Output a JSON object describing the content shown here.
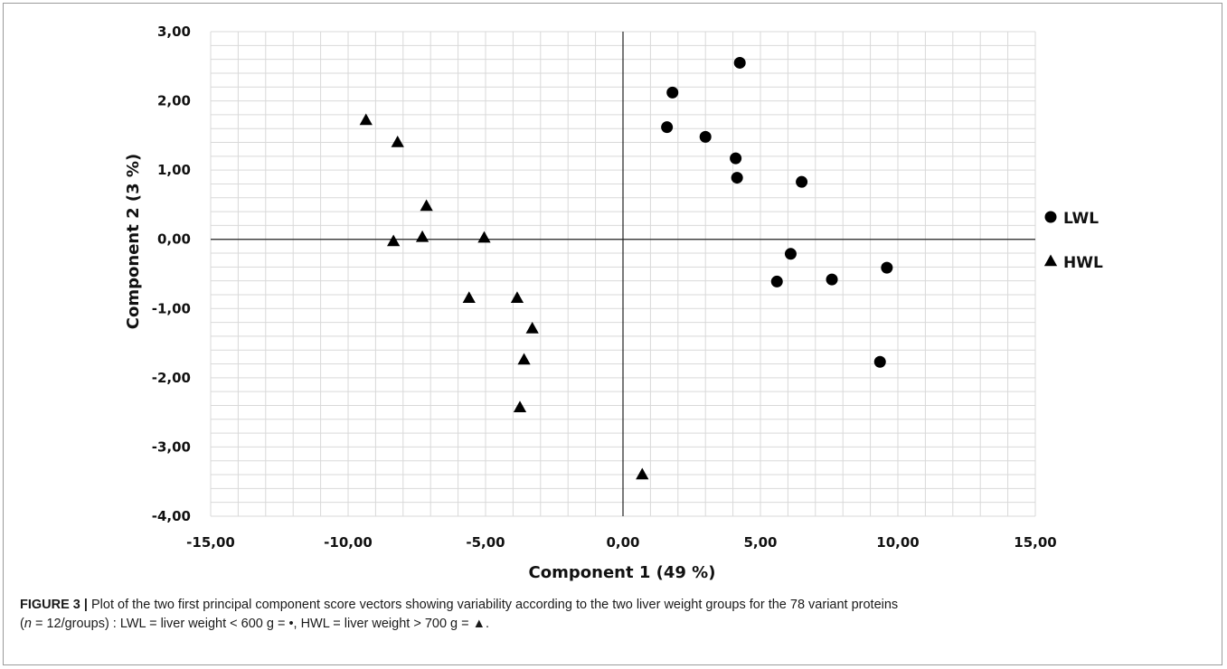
{
  "chart_data": {
    "type": "scatter",
    "xlabel": "Component 1 (49 %)",
    "ylabel": "Component 2 (3 %)",
    "xlim": [
      -15,
      15
    ],
    "ylim": [
      -4,
      3
    ],
    "x_ticks": [
      "-15,00",
      "-10,00",
      "-5,00",
      "0,00",
      "5,00",
      "10,00",
      "15,00"
    ],
    "y_ticks": [
      "3,00",
      "2,00",
      "1,00",
      "0,00",
      "-1,00",
      "-2,00",
      "-3,00",
      "-4,00"
    ],
    "grid": true,
    "legend_position": "right",
    "series": [
      {
        "name": "LWL",
        "marker": "circle",
        "color": "#000000",
        "points": [
          {
            "x": 4.25,
            "y": 2.55
          },
          {
            "x": 1.8,
            "y": 2.12
          },
          {
            "x": 1.6,
            "y": 1.62
          },
          {
            "x": 3.0,
            "y": 1.48
          },
          {
            "x": 4.1,
            "y": 1.17
          },
          {
            "x": 4.15,
            "y": 0.89
          },
          {
            "x": 6.5,
            "y": 0.83
          },
          {
            "x": 6.1,
            "y": -0.21
          },
          {
            "x": 9.6,
            "y": -0.41
          },
          {
            "x": 7.6,
            "y": -0.58
          },
          {
            "x": 5.6,
            "y": -0.61
          },
          {
            "x": 9.35,
            "y": -1.77
          }
        ]
      },
      {
        "name": "HWL",
        "marker": "triangle",
        "color": "#000000",
        "points": [
          {
            "x": -9.35,
            "y": 1.72
          },
          {
            "x": -8.2,
            "y": 1.4
          },
          {
            "x": -7.15,
            "y": 0.48
          },
          {
            "x": -8.35,
            "y": -0.03
          },
          {
            "x": -7.3,
            "y": 0.03
          },
          {
            "x": -5.05,
            "y": 0.02
          },
          {
            "x": -5.6,
            "y": -0.85
          },
          {
            "x": -3.85,
            "y": -0.85
          },
          {
            "x": -3.3,
            "y": -1.29
          },
          {
            "x": -3.6,
            "y": -1.74
          },
          {
            "x": -3.75,
            "y": -2.43
          },
          {
            "x": 0.7,
            "y": -3.4
          }
        ]
      }
    ]
  },
  "caption": {
    "label": "FIGURE 3 |",
    "line1": " Plot of the two first principal component score vectors showing variability according to the two liver weight groups for the 78 variant proteins",
    "n_symbol": "n",
    "line2": " = 12/groups) : LWL = liver weight < 600 g = •, HWL = liver weight > 700 g = ▲."
  }
}
